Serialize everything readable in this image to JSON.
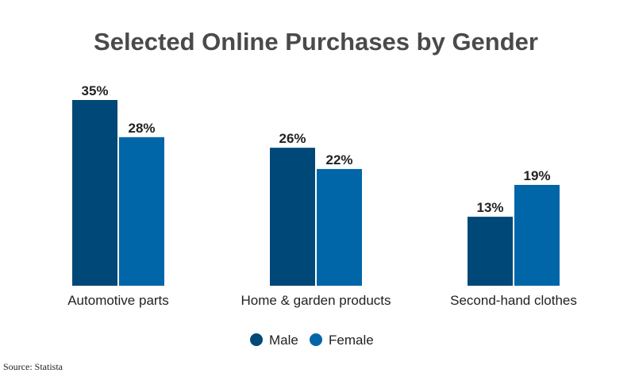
{
  "chart_data": {
    "type": "bar",
    "title": "Selected Online Purchases by Gender",
    "categories": [
      "Automotive parts",
      "Home & garden products",
      "Second-hand clothes"
    ],
    "series": [
      {
        "name": "Male",
        "values": [
          35,
          26,
          13
        ],
        "labels": [
          "35%",
          "26%",
          "13%"
        ],
        "color": "#004877"
      },
      {
        "name": "Female",
        "values": [
          28,
          22,
          19
        ],
        "labels": [
          "28%",
          "22%",
          "19%"
        ],
        "color": "#0066a8"
      }
    ],
    "ylim": [
      0,
      35
    ],
    "grid": false,
    "legend": "bottom-center",
    "source": "Source: Statista"
  }
}
